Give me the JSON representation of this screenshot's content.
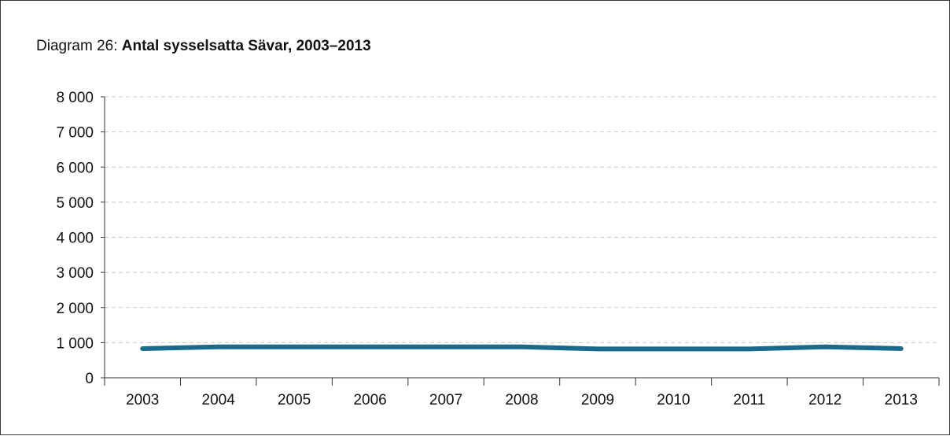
{
  "title": {
    "prefix": "Diagram 26: ",
    "main": "Antal sysselsatta Sävar, 2003–2013"
  },
  "chart_data": {
    "type": "line",
    "title": "Diagram 26: Antal sysselsatta Sävar, 2003–2013",
    "xlabel": "",
    "ylabel": "",
    "categories": [
      "2003",
      "2004",
      "2005",
      "2006",
      "2007",
      "2008",
      "2009",
      "2010",
      "2011",
      "2012",
      "2013"
    ],
    "series": [
      {
        "values": [
          830,
          880,
          880,
          880,
          880,
          880,
          820,
          820,
          820,
          880,
          830
        ],
        "color": "#1b6a8c"
      }
    ],
    "ylim": [
      0,
      8000
    ],
    "y_ticks": [
      0,
      1000,
      2000,
      3000,
      4000,
      5000,
      6000,
      7000,
      8000
    ],
    "y_tick_labels": [
      "0",
      "1 000",
      "2 000",
      "3 000",
      "4 000",
      "5 000",
      "6 000",
      "7 000",
      "8 000"
    ],
    "grid": true,
    "legend": "none"
  }
}
